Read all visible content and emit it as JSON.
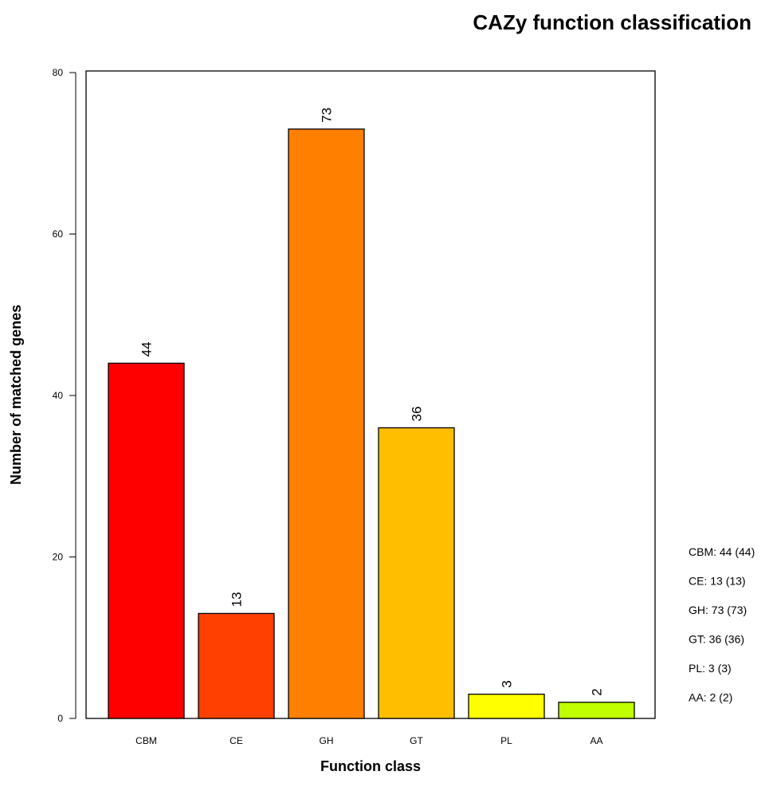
{
  "chart_data": {
    "type": "bar",
    "title": "CAZy function classification",
    "xlabel": "Function class",
    "ylabel": "Number of matched genes",
    "categories": [
      "CBM",
      "CE",
      "GH",
      "GT",
      "PL",
      "AA"
    ],
    "values": [
      44,
      13,
      73,
      36,
      3,
      2
    ],
    "data_labels": [
      "44",
      "13",
      "73",
      "36",
      "3",
      "2"
    ],
    "colors": [
      "#ff0000",
      "#ff4000",
      "#ff8000",
      "#ffbf00",
      "#ffff00",
      "#bfff00"
    ],
    "ylim": [
      0,
      80
    ],
    "yticks": [
      0,
      20,
      40,
      60,
      80
    ],
    "ytick_labels": [
      "0",
      "20",
      "40",
      "60",
      "80"
    ],
    "grid": false,
    "legend_position": "right",
    "legend_entries": [
      {
        "label": "CBM:",
        "value": "44",
        "count": "(44)"
      },
      {
        "label": "CE:",
        "value": "13",
        "count": "(13)"
      },
      {
        "label": "GH:",
        "value": "73",
        "count": "(73)"
      },
      {
        "label": "GT:",
        "value": "36",
        "count": "(36)"
      },
      {
        "label": "PL:",
        "value": "3",
        "count": "(3)"
      },
      {
        "label": "AA:",
        "value": "2",
        "count": "(2)"
      }
    ]
  }
}
